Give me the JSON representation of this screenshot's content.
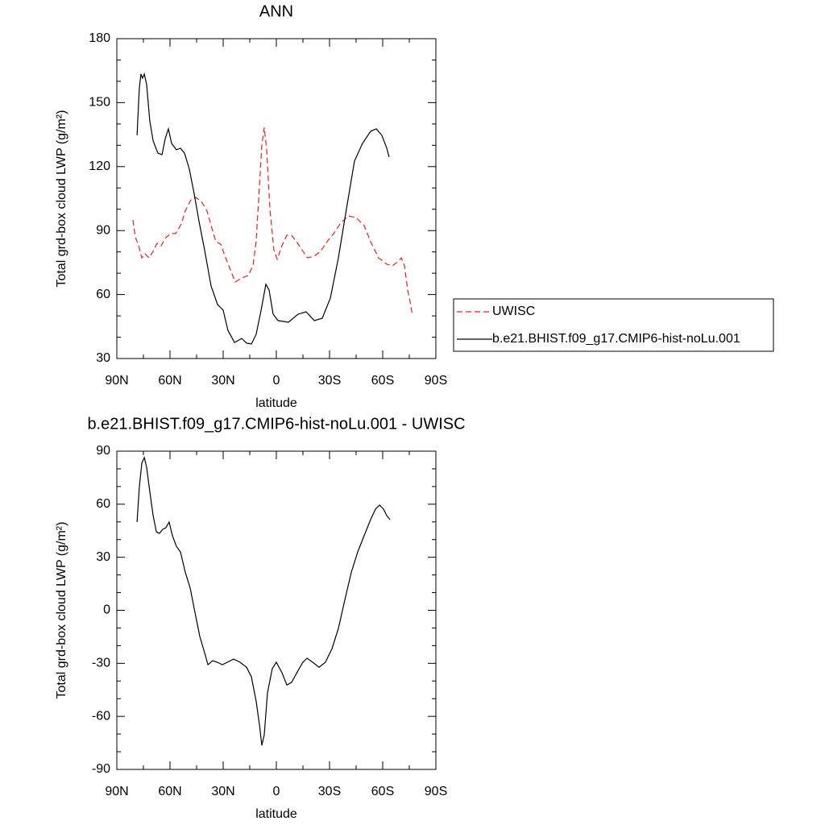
{
  "chart_data": [
    {
      "type": "line",
      "title": "ANN",
      "x_label": "latitude",
      "y_label": "Total grd-box cloud LWP (g/m²)",
      "xlim": [
        90,
        -90
      ],
      "xticks": [
        {
          "value": 90,
          "label": "90N"
        },
        {
          "value": 60,
          "label": "60N"
        },
        {
          "value": 30,
          "label": "30N"
        },
        0,
        {
          "value": -30,
          "label": "30S"
        },
        {
          "value": -60,
          "label": "60S"
        },
        {
          "value": -90,
          "label": "90S"
        }
      ],
      "ylim": [
        30,
        180
      ],
      "yticks": [
        30,
        60,
        90,
        120,
        150,
        180
      ],
      "legend": "outside-right",
      "series": [
        {
          "name": "UWISC",
          "color": "#e8211c",
          "dashed": true,
          "x": [
            80.9,
            79.5,
            77.7,
            75.9,
            74.1,
            71.8,
            69.5,
            67.3,
            65,
            62.3,
            59.5,
            56.8,
            53.6,
            51.4,
            48.2,
            45.5,
            42.3,
            39.1,
            36.8,
            34.1,
            31.4,
            28.6,
            25.9,
            23.2,
            19.5,
            15.9,
            13.2,
            11.4,
            9.5,
            8.2,
            6.8,
            5.5,
            3.6,
            1.4,
            -0.5,
            -3.2,
            -5.9,
            -8.6,
            -11.4,
            -15,
            -17.7,
            -21.4,
            -25,
            -28.6,
            -32.3,
            -35.9,
            -40.5,
            -45,
            -49.5,
            -53.2,
            -57.7,
            -62.3,
            -65.5,
            -68.6,
            -70.5,
            -72.3,
            -74.1,
            -75.5,
            -76.8
          ],
          "values": [
            95,
            86.7,
            82.9,
            77.2,
            79.1,
            77.2,
            80.3,
            84,
            82.9,
            86.7,
            88.6,
            88.6,
            93.1,
            99.2,
            104.4,
            105.6,
            103.7,
            99.2,
            92.4,
            84.8,
            83.7,
            77.2,
            71.6,
            65.9,
            67.8,
            68.9,
            73.5,
            84.8,
            111.2,
            130.1,
            138.4,
            128.2,
            99.9,
            81,
            76.5,
            82.9,
            87.8,
            87.8,
            84.8,
            80.3,
            77.2,
            78,
            80.3,
            84.8,
            88.6,
            93.1,
            96.9,
            96.1,
            92.4,
            84.8,
            77.2,
            74.2,
            73.5,
            75.4,
            77.2,
            73.5,
            62.1,
            56.5,
            50
          ]
        },
        {
          "name": "b.e21.BHIST.f09_g17.CMIP6-hist-noLu.001",
          "color": "#000000",
          "dashed": false,
          "x": [
            78.6,
            77.3,
            76.4,
            75.5,
            74.5,
            73.2,
            71.4,
            69.5,
            66.8,
            64.5,
            62.7,
            60.9,
            59.1,
            56.4,
            54.1,
            51.8,
            49.1,
            46.4,
            43.6,
            40.5,
            36.8,
            33.2,
            30,
            27.3,
            23.6,
            19.5,
            16.8,
            14.1,
            11.4,
            8.6,
            5.9,
            4.1,
            1.8,
            -0.9,
            -6.8,
            -12.3,
            -16.8,
            -21.4,
            -25.9,
            -30.5,
            -35,
            -39.5,
            -44.1,
            -48.6,
            -53.2,
            -56.4,
            -59.5,
            -62.3,
            -63.6
          ],
          "values": [
            134.7,
            156.6,
            163.4,
            161.5,
            163.4,
            158.5,
            141.5,
            132,
            126.3,
            125.6,
            133.2,
            137.7,
            130.9,
            127.9,
            128.6,
            126.3,
            118.8,
            107.5,
            94.2,
            81,
            64,
            55.3,
            52.7,
            43.2,
            37.5,
            39.4,
            37.2,
            36.8,
            41.3,
            52.7,
            64.8,
            62.1,
            50.8,
            47.8,
            47,
            50.8,
            51.9,
            47.8,
            48.9,
            58.4,
            77.2,
            99.9,
            122.6,
            130.9,
            136.6,
            137.7,
            134.7,
            128.6,
            124.5
          ]
        }
      ]
    },
    {
      "type": "line",
      "title": "b.e21.BHIST.f09_g17.CMIP6-hist-noLu.001 - UWISC",
      "x_label": "latitude",
      "y_label": "Total grd-box cloud LWP (g/m²)",
      "xlim": [
        90,
        -90
      ],
      "xticks": [
        {
          "value": 90,
          "label": "90N"
        },
        {
          "value": 60,
          "label": "60N"
        },
        {
          "value": 30,
          "label": "30N"
        },
        0,
        {
          "value": -30,
          "label": "30S"
        },
        {
          "value": -60,
          "label": "60S"
        },
        {
          "value": -90,
          "label": "90S"
        }
      ],
      "ylim": [
        -90,
        90
      ],
      "yticks": [
        -90,
        -60,
        -30,
        0,
        30,
        60,
        90
      ],
      "color": "#000000",
      "x": [
        78.6,
        77.3,
        75.9,
        74.5,
        73.2,
        71.4,
        69.5,
        67.7,
        65.9,
        64.1,
        62.3,
        60.5,
        58.6,
        56.4,
        54.1,
        51.4,
        48.6,
        45.9,
        43.2,
        40.5,
        38.6,
        35.9,
        33.2,
        30.5,
        27.7,
        24.1,
        20.5,
        16.8,
        14.1,
        11.4,
        9.5,
        8.2,
        6.8,
        5,
        2.3,
        0,
        -3.2,
        -5.9,
        -8.6,
        -12.3,
        -15,
        -17.3,
        -20.5,
        -24.1,
        -27.7,
        -31.4,
        -35,
        -38.6,
        -42.3,
        -45.9,
        -49.5,
        -53.2,
        -55.9,
        -58.2,
        -60.5,
        -62.3,
        -64.1
      ],
      "values": [
        49.9,
        69.5,
        83.2,
        86.4,
        80.9,
        67.2,
        53.5,
        44.4,
        43.5,
        45.8,
        46.7,
        49.9,
        42.1,
        36.2,
        33,
        21.6,
        12.5,
        -1.2,
        -14.8,
        -23.9,
        -30.8,
        -28.5,
        -29.4,
        -30.8,
        -29.4,
        -27.6,
        -29.4,
        -32.2,
        -37.6,
        -51.3,
        -65,
        -76.4,
        -70.4,
        -46.7,
        -33.1,
        -29.4,
        -35.3,
        -42.2,
        -40.8,
        -34,
        -29.4,
        -27.1,
        -29.4,
        -32.2,
        -29.4,
        -21.7,
        -10.3,
        5.7,
        21.6,
        33,
        42.1,
        51.3,
        57.2,
        59.5,
        57.2,
        53.5,
        51.3
      ]
    }
  ]
}
